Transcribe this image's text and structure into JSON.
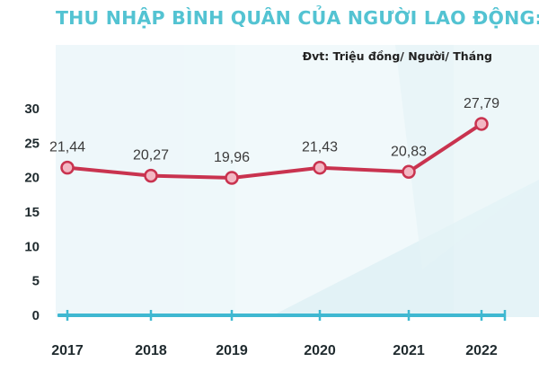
{
  "colors": {
    "title": "#53c3d2",
    "line": "#c9334f",
    "marker_fill": "#f3b7c3",
    "axis": "#3fb8d1",
    "background_panel": "#e8f4f8"
  },
  "chart_data": {
    "type": "line",
    "title": "THU NHẬP BÌNH QUÂN CỦA NGƯỜI LAO ĐỘNG:",
    "unit_note": "Đvt: Triệu đồng/ Người/ Tháng",
    "xlabel": "",
    "ylabel": "",
    "categories": [
      "2017",
      "2018",
      "2019",
      "2020",
      "2021",
      "2022"
    ],
    "series": [
      {
        "name": "Thu nhập bình quân",
        "values": [
          21.44,
          20.27,
          19.96,
          21.43,
          20.83,
          27.79
        ],
        "labels": [
          "21,44",
          "20,27",
          "19,96",
          "21,43",
          "20,83",
          "27,79"
        ]
      }
    ],
    "yticks": [
      0,
      5,
      10,
      15,
      20,
      25,
      30
    ],
    "ylim": [
      0,
      30
    ],
    "grid": false
  }
}
